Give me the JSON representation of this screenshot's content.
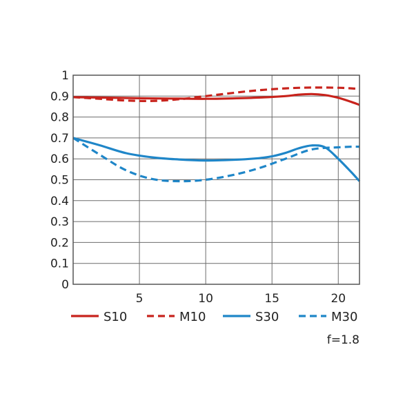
{
  "chart_data": {
    "type": "line",
    "xlim": [
      0,
      21.6
    ],
    "ylim": [
      0,
      1
    ],
    "x_ticks": [
      "5",
      "10",
      "15",
      "20"
    ],
    "y_ticks": [
      "0",
      "0.1",
      "0.2",
      "0.3",
      "0.4",
      "0.5",
      "0.6",
      "0.7",
      "0.8",
      "0.9",
      "1"
    ],
    "grid": true,
    "legend_position": "bottom",
    "note": "f=1.8",
    "series": [
      {
        "name": "S10",
        "color": "#c8231c",
        "style": "solid",
        "x": [
          0,
          2,
          4,
          6,
          8,
          10,
          12,
          14,
          16,
          17,
          18,
          19,
          20,
          21,
          21.6
        ],
        "y": [
          0.895,
          0.893,
          0.891,
          0.889,
          0.888,
          0.887,
          0.889,
          0.893,
          0.9,
          0.907,
          0.91,
          0.905,
          0.892,
          0.872,
          0.858
        ]
      },
      {
        "name": "M10",
        "color": "#c8231c",
        "style": "dashed",
        "x": [
          0,
          2,
          4,
          6,
          8,
          10,
          12,
          14,
          16,
          18,
          20,
          21,
          21.6
        ],
        "y": [
          0.895,
          0.887,
          0.879,
          0.877,
          0.885,
          0.9,
          0.915,
          0.928,
          0.937,
          0.941,
          0.94,
          0.937,
          0.934
        ]
      },
      {
        "name": "S30",
        "color": "#1f86c8",
        "style": "solid",
        "x": [
          0,
          2,
          4,
          6,
          8,
          10,
          12,
          14,
          15,
          16,
          17,
          18,
          19,
          20,
          21,
          21.6
        ],
        "y": [
          0.7,
          0.665,
          0.627,
          0.607,
          0.597,
          0.592,
          0.595,
          0.603,
          0.612,
          0.628,
          0.65,
          0.664,
          0.655,
          0.6,
          0.535,
          0.493
        ]
      },
      {
        "name": "M30",
        "color": "#1f86c8",
        "style": "dashed",
        "x": [
          0,
          2,
          4,
          6,
          8,
          10,
          12,
          14,
          16,
          18,
          20,
          21,
          21.6
        ],
        "y": [
          0.7,
          0.62,
          0.545,
          0.503,
          0.493,
          0.5,
          0.522,
          0.555,
          0.6,
          0.645,
          0.655,
          0.658,
          0.658
        ]
      }
    ]
  }
}
